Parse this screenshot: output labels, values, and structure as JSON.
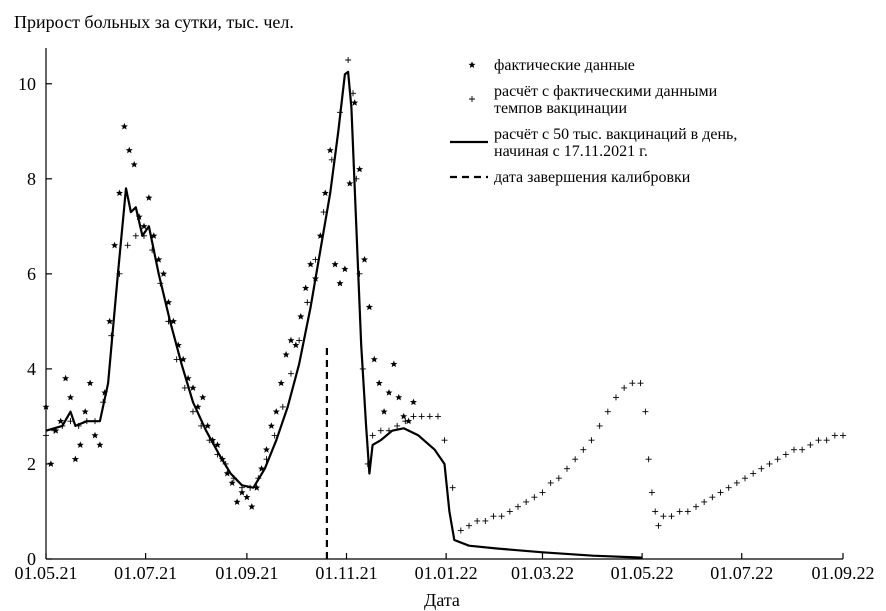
{
  "chart_data": {
    "type": "scatter",
    "ylabel": "Прирост больных за сутки, тыс.  чел.",
    "xlabel": "Дата",
    "xlim": [
      "2021-05-01",
      "2022-09-01"
    ],
    "ylim": [
      0,
      10.5
    ],
    "x_ticks": [
      "01.05.21",
      "01.07.21",
      "01.09.21",
      "01.11.21",
      "01.01.22",
      "01.03.22",
      "01.05.22",
      "01.07.22",
      "01.09.22"
    ],
    "x_tick_dates": [
      "2021-05-01",
      "2021-07-01",
      "2021-09-01",
      "2021-11-01",
      "2022-01-01",
      "2022-03-01",
      "2022-05-01",
      "2022-07-01",
      "2022-09-01"
    ],
    "y_ticks": [
      0,
      2,
      4,
      6,
      8,
      10
    ],
    "grid": false,
    "legend_position": "top-right",
    "legend": [
      {
        "label_lines": [
          "фактические данные"
        ],
        "marker": "star"
      },
      {
        "label_lines": [
          "расчёт с фактическими данными",
          "темпов вакцинации"
        ],
        "marker": "plus"
      },
      {
        "label_lines": [
          "расчёт с 50 тыс. вакцинаций в день,",
          "начиная с 17.11.2021 г."
        ],
        "marker": "solid-line"
      },
      {
        "label_lines": [
          "дата завершения калибровки"
        ],
        "marker": "dashed-line"
      }
    ],
    "series": [
      {
        "role": "actual",
        "marker": "star",
        "points": [
          [
            "2021-05-01",
            3.2
          ],
          [
            "2021-05-04",
            2.0
          ],
          [
            "2021-05-07",
            2.7
          ],
          [
            "2021-05-10",
            2.9
          ],
          [
            "2021-05-13",
            3.8
          ],
          [
            "2021-05-16",
            3.4
          ],
          [
            "2021-05-19",
            2.1
          ],
          [
            "2021-05-22",
            2.4
          ],
          [
            "2021-05-25",
            3.1
          ],
          [
            "2021-05-28",
            3.7
          ],
          [
            "2021-05-31",
            2.6
          ],
          [
            "2021-06-03",
            2.4
          ],
          [
            "2021-06-06",
            3.5
          ],
          [
            "2021-06-09",
            5.0
          ],
          [
            "2021-06-12",
            6.6
          ],
          [
            "2021-06-15",
            7.7
          ],
          [
            "2021-06-18",
            9.1
          ],
          [
            "2021-06-21",
            8.6
          ],
          [
            "2021-06-24",
            8.3
          ],
          [
            "2021-06-27",
            7.2
          ],
          [
            "2021-06-30",
            7.0
          ],
          [
            "2021-07-03",
            7.6
          ],
          [
            "2021-07-06",
            6.8
          ],
          [
            "2021-07-09",
            6.3
          ],
          [
            "2021-07-12",
            6.0
          ],
          [
            "2021-07-15",
            5.4
          ],
          [
            "2021-07-18",
            5.0
          ],
          [
            "2021-07-21",
            4.5
          ],
          [
            "2021-07-24",
            4.2
          ],
          [
            "2021-07-27",
            3.8
          ],
          [
            "2021-07-30",
            3.6
          ],
          [
            "2021-08-02",
            3.2
          ],
          [
            "2021-08-05",
            3.4
          ],
          [
            "2021-08-08",
            2.8
          ],
          [
            "2021-08-11",
            2.5
          ],
          [
            "2021-08-14",
            2.4
          ],
          [
            "2021-08-17",
            2.1
          ],
          [
            "2021-08-20",
            1.8
          ],
          [
            "2021-08-23",
            1.6
          ],
          [
            "2021-08-26",
            1.2
          ],
          [
            "2021-08-29",
            1.4
          ],
          [
            "2021-09-01",
            1.3
          ],
          [
            "2021-09-04",
            1.1
          ],
          [
            "2021-09-07",
            1.5
          ],
          [
            "2021-09-10",
            1.9
          ],
          [
            "2021-09-13",
            2.3
          ],
          [
            "2021-09-16",
            2.8
          ],
          [
            "2021-09-19",
            3.1
          ],
          [
            "2021-09-22",
            3.7
          ],
          [
            "2021-09-25",
            4.3
          ],
          [
            "2021-09-28",
            4.6
          ],
          [
            "2021-10-01",
            4.5
          ],
          [
            "2021-10-04",
            5.1
          ],
          [
            "2021-10-07",
            5.7
          ],
          [
            "2021-10-10",
            6.2
          ],
          [
            "2021-10-13",
            5.9
          ],
          [
            "2021-10-16",
            6.8
          ],
          [
            "2021-10-19",
            7.7
          ],
          [
            "2021-10-22",
            8.6
          ],
          [
            "2021-10-25",
            6.2
          ],
          [
            "2021-10-28",
            5.8
          ],
          [
            "2021-10-31",
            6.1
          ],
          [
            "2021-11-03",
            7.9
          ],
          [
            "2021-11-06",
            9.6
          ],
          [
            "2021-11-09",
            8.2
          ],
          [
            "2021-11-12",
            6.3
          ],
          [
            "2021-11-15",
            5.3
          ],
          [
            "2021-11-18",
            4.2
          ],
          [
            "2021-11-21",
            3.7
          ],
          [
            "2021-11-24",
            3.1
          ],
          [
            "2021-11-27",
            3.5
          ],
          [
            "2021-11-30",
            4.1
          ],
          [
            "2021-12-03",
            3.4
          ],
          [
            "2021-12-06",
            3.0
          ],
          [
            "2021-12-09",
            2.9
          ],
          [
            "2021-12-12",
            3.3
          ]
        ]
      },
      {
        "role": "model_actual_vaccination",
        "marker": "plus",
        "points": [
          [
            "2021-05-01",
            2.6
          ],
          [
            "2021-05-06",
            2.7
          ],
          [
            "2021-05-11",
            2.8
          ],
          [
            "2021-05-16",
            2.9
          ],
          [
            "2021-05-21",
            2.8
          ],
          [
            "2021-05-26",
            2.9
          ],
          [
            "2021-05-31",
            2.9
          ],
          [
            "2021-06-05",
            3.3
          ],
          [
            "2021-06-10",
            4.7
          ],
          [
            "2021-06-15",
            6.0
          ],
          [
            "2021-06-20",
            6.6
          ],
          [
            "2021-06-25",
            6.8
          ],
          [
            "2021-06-30",
            6.8
          ],
          [
            "2021-07-05",
            6.5
          ],
          [
            "2021-07-10",
            5.8
          ],
          [
            "2021-07-15",
            5.0
          ],
          [
            "2021-07-20",
            4.2
          ],
          [
            "2021-07-25",
            3.6
          ],
          [
            "2021-07-30",
            3.1
          ],
          [
            "2021-08-04",
            2.8
          ],
          [
            "2021-08-09",
            2.5
          ],
          [
            "2021-08-14",
            2.2
          ],
          [
            "2021-08-19",
            2.0
          ],
          [
            "2021-08-24",
            1.7
          ],
          [
            "2021-08-29",
            1.5
          ],
          [
            "2021-09-03",
            1.5
          ],
          [
            "2021-09-08",
            1.7
          ],
          [
            "2021-09-13",
            2.1
          ],
          [
            "2021-09-18",
            2.6
          ],
          [
            "2021-09-23",
            3.2
          ],
          [
            "2021-09-28",
            3.9
          ],
          [
            "2021-10-03",
            4.6
          ],
          [
            "2021-10-08",
            5.4
          ],
          [
            "2021-10-13",
            6.3
          ],
          [
            "2021-10-18",
            7.3
          ],
          [
            "2021-10-23",
            8.4
          ],
          [
            "2021-10-28",
            9.4
          ],
          [
            "2021-11-02",
            10.5
          ],
          [
            "2021-11-05",
            9.8
          ],
          [
            "2021-11-07",
            8.0
          ],
          [
            "2021-11-09",
            6.0
          ],
          [
            "2021-11-11",
            4.0
          ],
          [
            "2021-11-14",
            2.0
          ],
          [
            "2021-11-17",
            2.6
          ],
          [
            "2021-11-22",
            2.7
          ],
          [
            "2021-11-27",
            2.7
          ],
          [
            "2021-12-02",
            2.8
          ],
          [
            "2021-12-07",
            2.9
          ],
          [
            "2021-12-12",
            3.0
          ],
          [
            "2021-12-17",
            3.0
          ],
          [
            "2021-12-22",
            3.0
          ],
          [
            "2021-12-27",
            3.0
          ],
          [
            "2021-12-31",
            2.5
          ],
          [
            "2022-01-05",
            1.5
          ],
          [
            "2022-01-10",
            0.6
          ],
          [
            "2022-01-15",
            0.7
          ],
          [
            "2022-01-20",
            0.8
          ],
          [
            "2022-01-25",
            0.8
          ],
          [
            "2022-01-30",
            0.9
          ],
          [
            "2022-02-04",
            0.9
          ],
          [
            "2022-02-09",
            1.0
          ],
          [
            "2022-02-14",
            1.1
          ],
          [
            "2022-02-19",
            1.2
          ],
          [
            "2022-02-24",
            1.3
          ],
          [
            "2022-03-01",
            1.4
          ],
          [
            "2022-03-06",
            1.6
          ],
          [
            "2022-03-11",
            1.7
          ],
          [
            "2022-03-16",
            1.9
          ],
          [
            "2022-03-21",
            2.1
          ],
          [
            "2022-03-26",
            2.3
          ],
          [
            "2022-03-31",
            2.5
          ],
          [
            "2022-04-05",
            2.8
          ],
          [
            "2022-04-10",
            3.1
          ],
          [
            "2022-04-15",
            3.4
          ],
          [
            "2022-04-20",
            3.6
          ],
          [
            "2022-04-25",
            3.7
          ],
          [
            "2022-04-30",
            3.7
          ],
          [
            "2022-05-03",
            3.1
          ],
          [
            "2022-05-05",
            2.1
          ],
          [
            "2022-05-07",
            1.4
          ],
          [
            "2022-05-09",
            1.0
          ],
          [
            "2022-05-11",
            0.7
          ],
          [
            "2022-05-14",
            0.9
          ],
          [
            "2022-05-19",
            0.9
          ],
          [
            "2022-05-24",
            1.0
          ],
          [
            "2022-05-29",
            1.0
          ],
          [
            "2022-06-03",
            1.1
          ],
          [
            "2022-06-08",
            1.2
          ],
          [
            "2022-06-13",
            1.3
          ],
          [
            "2022-06-18",
            1.4
          ],
          [
            "2022-06-23",
            1.5
          ],
          [
            "2022-06-28",
            1.6
          ],
          [
            "2022-07-03",
            1.7
          ],
          [
            "2022-07-08",
            1.8
          ],
          [
            "2022-07-13",
            1.9
          ],
          [
            "2022-07-18",
            2.0
          ],
          [
            "2022-07-23",
            2.1
          ],
          [
            "2022-07-28",
            2.2
          ],
          [
            "2022-08-02",
            2.3
          ],
          [
            "2022-08-07",
            2.3
          ],
          [
            "2022-08-12",
            2.4
          ],
          [
            "2022-08-17",
            2.5
          ],
          [
            "2022-08-22",
            2.5
          ],
          [
            "2022-08-27",
            2.6
          ],
          [
            "2022-09-01",
            2.6
          ]
        ]
      },
      {
        "role": "model_50k_vaccinations",
        "marker": "solid-line",
        "points": [
          [
            "2021-05-01",
            2.7
          ],
          [
            "2021-05-11",
            2.8
          ],
          [
            "2021-05-16",
            3.1
          ],
          [
            "2021-05-19",
            2.8
          ],
          [
            "2021-05-26",
            2.9
          ],
          [
            "2021-06-03",
            2.9
          ],
          [
            "2021-06-08",
            3.7
          ],
          [
            "2021-06-14",
            6.0
          ],
          [
            "2021-06-19",
            7.8
          ],
          [
            "2021-06-22",
            7.3
          ],
          [
            "2021-06-25",
            7.4
          ],
          [
            "2021-06-29",
            6.8
          ],
          [
            "2021-07-03",
            7.0
          ],
          [
            "2021-07-09",
            6.0
          ],
          [
            "2021-07-16",
            5.0
          ],
          [
            "2021-07-23",
            4.1
          ],
          [
            "2021-07-30",
            3.3
          ],
          [
            "2021-08-07",
            2.7
          ],
          [
            "2021-08-15",
            2.2
          ],
          [
            "2021-08-22",
            1.8
          ],
          [
            "2021-08-29",
            1.55
          ],
          [
            "2021-09-05",
            1.5
          ],
          [
            "2021-09-12",
            1.9
          ],
          [
            "2021-09-19",
            2.5
          ],
          [
            "2021-09-26",
            3.2
          ],
          [
            "2021-10-03",
            4.1
          ],
          [
            "2021-10-10",
            5.3
          ],
          [
            "2021-10-16",
            6.5
          ],
          [
            "2021-10-22",
            7.7
          ],
          [
            "2021-10-27",
            9.0
          ],
          [
            "2021-10-31",
            10.2
          ],
          [
            "2021-11-02",
            10.25
          ],
          [
            "2021-11-04",
            9.5
          ],
          [
            "2021-11-07",
            7.0
          ],
          [
            "2021-11-10",
            4.5
          ],
          [
            "2021-11-13",
            2.8
          ],
          [
            "2021-11-15",
            1.8
          ],
          [
            "2021-11-17",
            2.4
          ],
          [
            "2021-11-22",
            2.5
          ],
          [
            "2021-11-29",
            2.7
          ],
          [
            "2021-12-06",
            2.75
          ],
          [
            "2021-12-15",
            2.6
          ],
          [
            "2021-12-25",
            2.3
          ],
          [
            "2021-12-31",
            2.0
          ],
          [
            "2022-01-03",
            1.0
          ],
          [
            "2022-01-06",
            0.4
          ],
          [
            "2022-01-15",
            0.28
          ],
          [
            "2022-02-01",
            0.22
          ],
          [
            "2022-03-01",
            0.14
          ],
          [
            "2022-04-01",
            0.07
          ],
          [
            "2022-05-01",
            0.03
          ]
        ]
      }
    ],
    "calibration_end_date": "2021-10-20",
    "calibration_line_top": 4.5
  }
}
